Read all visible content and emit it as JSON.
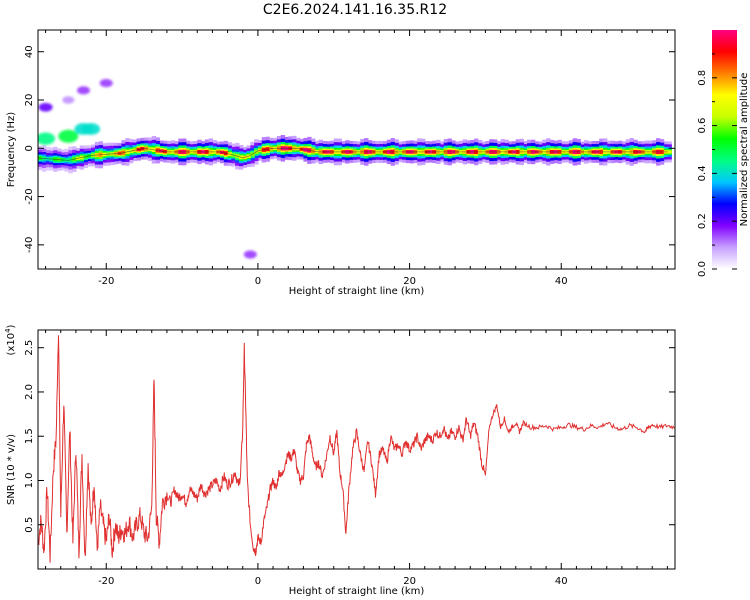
{
  "title": "C2E6.2024.141.16.35.R12",
  "chart_data": [
    {
      "type": "heatmap",
      "panel": "top",
      "xlabel": "Height of straight line (km)",
      "ylabel": "Frequency (Hz)",
      "xlim": [
        -29,
        55
      ],
      "ylim": [
        -50,
        49
      ],
      "xticks": [
        -20,
        0,
        20,
        40
      ],
      "yticks": [
        -40,
        -20,
        0,
        20,
        40
      ],
      "grid": false,
      "colorbar": {
        "label": "Normalized spectral amplitude",
        "range": [
          0,
          1
        ],
        "ticks": [
          0.0,
          0.2,
          0.4,
          0.6,
          0.8
        ],
        "colormap": [
          "#ffffff",
          "#c8a0ff",
          "#8000ff",
          "#0000ff",
          "#00c8ff",
          "#00ff80",
          "#00ff00",
          "#c8ff00",
          "#ffff00",
          "#ff8000",
          "#ff0000",
          "#ff0080"
        ]
      },
      "ridge": {
        "frequency_hz": [
          {
            "x": -29,
            "y": -4
          },
          {
            "x": -25,
            "y": -5
          },
          {
            "x": -22,
            "y": -3
          },
          {
            "x": -18,
            "y": -2
          },
          {
            "x": -15,
            "y": 0
          },
          {
            "x": -12,
            "y": -1.5
          },
          {
            "x": -5,
            "y": -1.5
          },
          {
            "x": -3,
            "y": -3
          },
          {
            "x": -2,
            "y": -4
          },
          {
            "x": -1,
            "y": -3
          },
          {
            "x": 0,
            "y": -1
          },
          {
            "x": 2,
            "y": 0
          },
          {
            "x": 5,
            "y": 0
          },
          {
            "x": 8,
            "y": -1.5
          },
          {
            "x": 20,
            "y": -1.5
          },
          {
            "x": 30,
            "y": -1.5
          },
          {
            "x": 40,
            "y": -1.5
          },
          {
            "x": 54,
            "y": -1.5
          }
        ],
        "amplitude_note": "peak values",
        "amplitude": [
          {
            "x": -26,
            "a": 0.55
          },
          {
            "x": -20,
            "a": 0.8
          },
          {
            "x": -15,
            "a": 0.9
          },
          {
            "x": -10,
            "a": 0.95
          },
          {
            "x": -5,
            "a": 0.95
          },
          {
            "x": -2,
            "a": 0.7
          },
          {
            "x": 3,
            "a": 1.0
          },
          {
            "x": 8,
            "a": 0.95
          },
          {
            "x": 15,
            "a": 0.95
          },
          {
            "x": 25,
            "a": 0.95
          },
          {
            "x": 35,
            "a": 0.95
          },
          {
            "x": 45,
            "a": 0.95
          },
          {
            "x": 54,
            "a": 0.9
          }
        ]
      },
      "patches": [
        {
          "x": -28,
          "y": 4,
          "a": 0.45
        },
        {
          "x": -25,
          "y": 5,
          "a": 0.5
        },
        {
          "x": -23,
          "y": 8,
          "a": 0.4
        },
        {
          "x": -22,
          "y": 8,
          "a": 0.4
        },
        {
          "x": -28,
          "y": 17,
          "a": 0.2
        },
        {
          "x": -23,
          "y": 24,
          "a": 0.15
        },
        {
          "x": -20,
          "y": 27,
          "a": 0.15
        },
        {
          "x": -25,
          "y": 20,
          "a": 0.1
        },
        {
          "x": -1,
          "y": -44,
          "a": 0.15
        }
      ]
    },
    {
      "type": "line",
      "panel": "bottom",
      "xlabel": "Height of straight line (km)",
      "ylabel": "SNR (10 * v/v)",
      "yscale_label": "(x10",
      "yscale_exponent": "4",
      "y_multiplier": 10000,
      "xlim": [
        -29,
        55
      ],
      "ylim": [
        0,
        2.7
      ],
      "xticks": [
        -20,
        0,
        20,
        40
      ],
      "yticks": [
        0.5,
        1.0,
        1.5,
        2.0,
        2.5
      ],
      "grid": false,
      "color": "#e03030",
      "series": [
        {
          "points": [
            [
              -29,
              0.3
            ],
            [
              -28.6,
              0.55
            ],
            [
              -28.2,
              0.2
            ],
            [
              -27.8,
              0.9
            ],
            [
              -27.4,
              0.15
            ],
            [
              -27.0,
              1.1
            ],
            [
              -26.6,
              1.5
            ],
            [
              -26.3,
              2.75
            ],
            [
              -26.0,
              0.6
            ],
            [
              -25.6,
              1.9
            ],
            [
              -25.2,
              0.4
            ],
            [
              -24.8,
              1.6
            ],
            [
              -24.4,
              0.3
            ],
            [
              -24.0,
              1.4
            ],
            [
              -23.6,
              0.2
            ],
            [
              -23.2,
              1.3
            ],
            [
              -22.8,
              0.1
            ],
            [
              -22.4,
              1.2
            ],
            [
              -22.0,
              0.45
            ],
            [
              -21.6,
              1.0
            ],
            [
              -21.2,
              0.2
            ],
            [
              -20.8,
              0.7
            ],
            [
              -20.4,
              0.5
            ],
            [
              -20.0,
              0.3
            ],
            [
              -19.6,
              0.6
            ],
            [
              -19.2,
              0.2
            ],
            [
              -18.8,
              0.5
            ],
            [
              -18.4,
              0.35
            ],
            [
              -18.0,
              0.45
            ],
            [
              -17.5,
              0.4
            ],
            [
              -17.0,
              0.55
            ],
            [
              -16.5,
              0.35
            ],
            [
              -16.0,
              0.5
            ],
            [
              -15.5,
              0.6
            ],
            [
              -15.0,
              0.4
            ],
            [
              -14.5,
              0.35
            ],
            [
              -14.0,
              0.7
            ],
            [
              -13.7,
              2.15
            ],
            [
              -13.4,
              0.6
            ],
            [
              -13.0,
              0.3
            ],
            [
              -12.6,
              0.75
            ],
            [
              -12.0,
              0.85
            ],
            [
              -11.5,
              0.75
            ],
            [
              -11.0,
              0.9
            ],
            [
              -10.5,
              0.8
            ],
            [
              -10.0,
              0.85
            ],
            [
              -9.5,
              0.75
            ],
            [
              -9.0,
              0.9
            ],
            [
              -8.5,
              0.85
            ],
            [
              -8.0,
              0.8
            ],
            [
              -7.5,
              0.95
            ],
            [
              -7.0,
              0.85
            ],
            [
              -6.5,
              0.9
            ],
            [
              -6.0,
              0.95
            ],
            [
              -5.5,
              1.0
            ],
            [
              -5.0,
              0.9
            ],
            [
              -4.5,
              1.05
            ],
            [
              -4.0,
              0.95
            ],
            [
              -3.5,
              1.0
            ],
            [
              -3.0,
              1.1
            ],
            [
              -2.6,
              0.95
            ],
            [
              -2.3,
              1.05
            ],
            [
              -2.0,
              1.6
            ],
            [
              -1.8,
              2.5
            ],
            [
              -1.6,
              1.8
            ],
            [
              -1.4,
              1.0
            ],
            [
              -1.0,
              0.5
            ],
            [
              -0.6,
              0.25
            ],
            [
              -0.3,
              0.2
            ],
            [
              0.0,
              0.35
            ],
            [
              0.4,
              0.3
            ],
            [
              0.8,
              0.55
            ],
            [
              1.2,
              0.7
            ],
            [
              1.6,
              0.9
            ],
            [
              2.0,
              1.0
            ],
            [
              2.4,
              0.9
            ],
            [
              2.8,
              1.1
            ],
            [
              3.2,
              1.05
            ],
            [
              3.6,
              1.2
            ],
            [
              4.0,
              1.3
            ],
            [
              4.4,
              1.25
            ],
            [
              4.8,
              1.35
            ],
            [
              5.2,
              1.1
            ],
            [
              5.6,
              1.0
            ],
            [
              6.0,
              1.05
            ],
            [
              6.4,
              1.4
            ],
            [
              6.8,
              1.5
            ],
            [
              7.2,
              1.3
            ],
            [
              7.6,
              1.15
            ],
            [
              8.0,
              1.2
            ],
            [
              8.5,
              1.05
            ],
            [
              9.0,
              1.25
            ],
            [
              9.5,
              1.5
            ],
            [
              10.0,
              1.3
            ],
            [
              10.4,
              1.55
            ],
            [
              10.8,
              1.1
            ],
            [
              11.2,
              0.9
            ],
            [
              11.6,
              0.4
            ],
            [
              12.0,
              0.9
            ],
            [
              12.5,
              1.35
            ],
            [
              13.0,
              1.55
            ],
            [
              13.5,
              1.3
            ],
            [
              14.0,
              1.1
            ],
            [
              14.5,
              1.45
            ],
            [
              15.0,
              1.2
            ],
            [
              15.5,
              0.85
            ],
            [
              16.0,
              1.3
            ],
            [
              16.5,
              1.35
            ],
            [
              17.0,
              1.2
            ],
            [
              17.5,
              1.5
            ],
            [
              18.0,
              1.35
            ],
            [
              18.5,
              1.4
            ],
            [
              19.0,
              1.3
            ],
            [
              19.5,
              1.45
            ],
            [
              20.0,
              1.35
            ],
            [
              20.5,
              1.4
            ],
            [
              21.0,
              1.5
            ],
            [
              21.5,
              1.35
            ],
            [
              22.0,
              1.45
            ],
            [
              22.5,
              1.5
            ],
            [
              23.0,
              1.45
            ],
            [
              23.5,
              1.55
            ],
            [
              24.0,
              1.5
            ],
            [
              24.5,
              1.6
            ],
            [
              25.0,
              1.45
            ],
            [
              25.5,
              1.55
            ],
            [
              26.0,
              1.5
            ],
            [
              26.5,
              1.6
            ],
            [
              27.0,
              1.45
            ],
            [
              27.5,
              1.7
            ],
            [
              28.0,
              1.5
            ],
            [
              28.5,
              1.65
            ],
            [
              29.0,
              1.5
            ],
            [
              29.5,
              1.2
            ],
            [
              30.0,
              1.05
            ],
            [
              30.5,
              1.6
            ],
            [
              31.0,
              1.75
            ],
            [
              31.5,
              1.85
            ],
            [
              32.0,
              1.6
            ],
            [
              32.5,
              1.7
            ],
            [
              33.0,
              1.55
            ],
            [
              33.5,
              1.6
            ],
            [
              34.0,
              1.65
            ],
            [
              34.5,
              1.55
            ],
            [
              35.0,
              1.65
            ],
            [
              36.0,
              1.6
            ],
            [
              37.0,
              1.6
            ],
            [
              38.0,
              1.62
            ],
            [
              39.0,
              1.58
            ],
            [
              40.0,
              1.6
            ],
            [
              41.0,
              1.63
            ],
            [
              42.0,
              1.6
            ],
            [
              43.0,
              1.58
            ],
            [
              44.0,
              1.62
            ],
            [
              45.0,
              1.6
            ],
            [
              46.0,
              1.65
            ],
            [
              47.0,
              1.6
            ],
            [
              48.0,
              1.58
            ],
            [
              49.0,
              1.62
            ],
            [
              50.0,
              1.6
            ],
            [
              51.0,
              1.55
            ],
            [
              51.5,
              1.6
            ],
            [
              52.0,
              1.63
            ],
            [
              53.0,
              1.6
            ],
            [
              54.0,
              1.62
            ],
            [
              55.0,
              1.6
            ]
          ]
        }
      ]
    }
  ]
}
